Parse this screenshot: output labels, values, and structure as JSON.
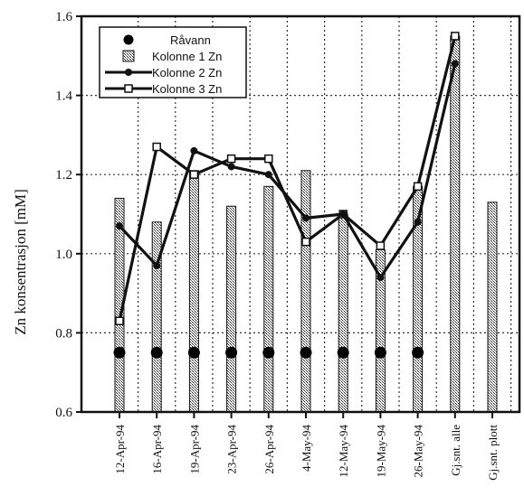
{
  "chart_data": {
    "type": "bar",
    "title": "",
    "xlabel": "",
    "ylabel": "Zn konsentrasjon [mM]",
    "ylim": [
      0.6,
      1.6
    ],
    "yticks": [
      "0.6",
      "0.8",
      "1.0",
      "1.2",
      "1.4",
      "1.6"
    ],
    "grid": true,
    "legend_position": "top-left",
    "categories": [
      "12-Apr-94",
      "16-Apr-94",
      "19-Apr-94",
      "23-Apr-94",
      "26-Apr-94",
      "4-May-94",
      "12-May-94",
      "19-May-94",
      "26-May-94",
      "Gj.snt. alle",
      "Gj.snt. plott"
    ],
    "series": [
      {
        "name": "Råvann",
        "kind": "points",
        "values": [
          0.75,
          0.75,
          0.75,
          0.75,
          0.75,
          0.75,
          0.75,
          0.75,
          0.75,
          null,
          null
        ]
      },
      {
        "name": "Kolonne 1 Zn",
        "kind": "bar",
        "values": [
          1.14,
          1.08,
          1.21,
          1.12,
          1.17,
          1.21,
          1.1,
          1.01,
          1.17,
          1.55,
          1.13
        ]
      },
      {
        "name": "Kolonne 2 Zn",
        "kind": "line",
        "values": [
          1.07,
          0.97,
          1.26,
          1.22,
          1.2,
          1.09,
          1.1,
          0.94,
          1.08,
          1.48,
          null
        ]
      },
      {
        "name": "Kolonne 3 Zn",
        "kind": "line",
        "values": [
          0.83,
          1.27,
          1.2,
          1.24,
          1.24,
          1.03,
          1.1,
          1.02,
          1.17,
          1.55,
          null
        ]
      }
    ]
  }
}
